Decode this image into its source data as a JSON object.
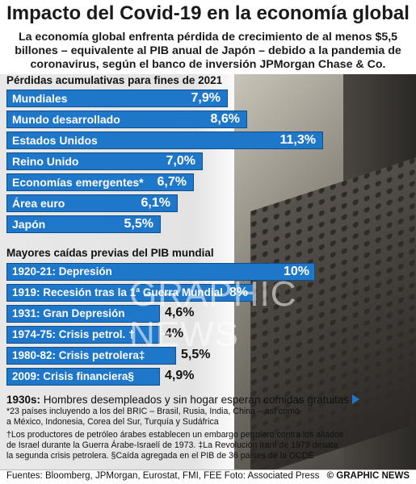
{
  "title": "Impacto del Covid-19 en la economía global",
  "subtitle": "La economía global enfrenta pérdida de crecimiento de al menos $5,5 billones – equivalente al PIB anual de Japón – debido a la pandemia de coronavirus, según el banco de inversión JPMorgan Chase & Co.",
  "chart_data": [
    {
      "type": "bar",
      "title": "Pérdidas acumulativas para fines de 2021",
      "categories": [
        "Mundiales",
        "Mundo desarrollado",
        "Estados Unidos",
        "Reino Unido",
        "Economías emergentes*",
        "Área euro",
        "Japón"
      ],
      "values": [
        7.9,
        8.6,
        11.3,
        7.0,
        6.7,
        6.1,
        5.5
      ],
      "value_labels": [
        "7,9%",
        "8,6%",
        "11,3%",
        "7,0%",
        "6,7%",
        "6,1%",
        "5,5%"
      ],
      "unit": "%",
      "color": "#1f77c9"
    },
    {
      "type": "bar",
      "title": "Mayores caídas previas del PIB mundial",
      "categories": [
        "1920-21: Depresión",
        "1919: Recesión tras la 1ª Guerra Mundial",
        "1931: Gran Depresión",
        "1974-75: Crisis petrol. †",
        "1980-82: Crisis petrolera‡",
        "2009: Crisis financiera§"
      ],
      "values": [
        10,
        8,
        4.6,
        4,
        5.5,
        4.9
      ],
      "value_labels": [
        "10%",
        "8%",
        "4,6%",
        "4%",
        "5,5%",
        "4,9%"
      ],
      "unit": "%",
      "color": "#1f77c9"
    }
  ],
  "caption": {
    "bold": "1930s:",
    "text": " Hombres desempleados y sin hogar esperan comidas gratuitas"
  },
  "notes": [
    "*23 países incluyendo a los del BRIC – Brasil, Rusia, India, China – así como",
    "a México, Indonesia, Corea del Sur, Turquía y Sudáfrica",
    "†Los productores de petróleo árabes establecen un embargo petrolero contra los aliados",
    "de Israel durante la Guerra Árabe-Israelí de 1973. ‡La Revolución Iraní de 1979 desata",
    "la segunda crisis petrolera. §Caída agregada en el PIB de 36 países de la OCDE"
  ],
  "footer": {
    "sources": "Fuentes: Bloomberg, JPMorgan, Eurostat, FMI, FEE  Foto: Associated Press",
    "brand": "© GRAPHIC NEWS"
  },
  "watermark": "GRAPHIC NEWS",
  "colors": {
    "accent": "#1f77c9"
  }
}
